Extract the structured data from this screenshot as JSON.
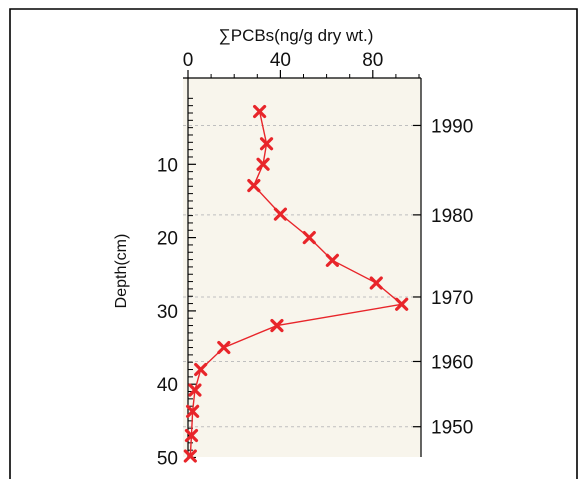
{
  "chart_data": {
    "type": "scatter",
    "title": "",
    "xlabel": "∑PCBs(ng/g dry wt.)",
    "ylabel": "Depth(cm)",
    "xlim": [
      0,
      100
    ],
    "ylim": [
      0,
      50
    ],
    "x_axis_position": "top",
    "y_inverted": true,
    "x_ticks": [
      "0",
      "40",
      "80"
    ],
    "x_tick_values": [
      0,
      40,
      80
    ],
    "y_ticks": [
      "10",
      "20",
      "30",
      "40",
      "50"
    ],
    "y_tick_values": [
      10,
      20,
      30,
      40,
      50
    ],
    "right_axis_labels": [
      {
        "label": "1990",
        "depth": 4.7
      },
      {
        "label": "1980",
        "depth": 16.9
      },
      {
        "label": "1970",
        "depth": 28.1
      },
      {
        "label": "1960",
        "depth": 36.9
      },
      {
        "label": "1950",
        "depth": 45.8
      }
    ],
    "series": [
      {
        "marker": "x",
        "line": true,
        "color": "#e8252a",
        "points": [
          {
            "x": 31.0,
            "y": 2.8
          },
          {
            "x": 34.0,
            "y": 7.2
          },
          {
            "x": 32.5,
            "y": 10.0
          },
          {
            "x": 28.5,
            "y": 12.9
          },
          {
            "x": 40.0,
            "y": 16.8
          },
          {
            "x": 52.5,
            "y": 20.0
          },
          {
            "x": 62.5,
            "y": 23.1
          },
          {
            "x": 81.5,
            "y": 26.2
          },
          {
            "x": 92.5,
            "y": 29.1
          },
          {
            "x": 38.5,
            "y": 32.0
          },
          {
            "x": 15.5,
            "y": 35.0
          },
          {
            "x": 5.5,
            "y": 38.0
          },
          {
            "x": 3.0,
            "y": 40.8
          },
          {
            "x": 2.0,
            "y": 43.7
          },
          {
            "x": 1.5,
            "y": 47.0
          },
          {
            "x": 1.0,
            "y": 49.8
          }
        ]
      }
    ],
    "colors": {
      "plot_background": "#f8f5ec",
      "gridline": "#bfbfbf",
      "axis": "#000000",
      "frame": "#000000"
    }
  }
}
